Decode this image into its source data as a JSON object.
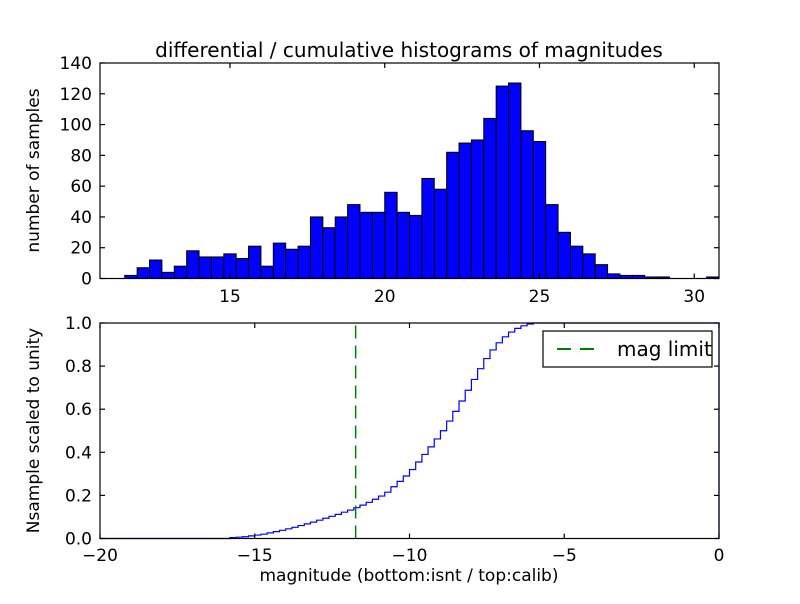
{
  "figure": {
    "background": "#ffffff"
  },
  "title": "differential / cumulative histograms of magnitudes",
  "xlabel": "magnitude (bottom:isnt / top:calib)",
  "chart_data": [
    {
      "type": "bar",
      "title": "differential / cumulative histograms of magnitudes",
      "ylabel": "number of samples",
      "xlim": [
        10.8,
        30.8
      ],
      "ylim": [
        0,
        140
      ],
      "xticks": [
        15,
        20,
        25,
        30
      ],
      "xtick_labels": [
        "15",
        "20",
        "25",
        "30"
      ],
      "yticks": [
        0,
        20,
        40,
        60,
        80,
        100,
        120,
        140
      ],
      "ytick_labels": [
        "0",
        "20",
        "40",
        "60",
        "80",
        "100",
        "120",
        "140"
      ],
      "grid": false,
      "bin_start": 11.6,
      "bin_width": 0.4,
      "values": [
        2,
        7,
        12,
        4,
        8,
        18,
        14,
        14,
        16,
        13,
        21,
        8,
        23,
        19,
        21,
        40,
        33,
        40,
        48,
        43,
        43,
        56,
        43,
        41,
        65,
        58,
        82,
        88,
        90,
        104,
        125,
        127,
        96,
        89,
        48,
        30,
        21,
        16,
        9,
        3,
        2,
        2,
        1,
        1,
        0,
        0,
        0,
        1
      ],
      "bar_color": "#0000ff",
      "bar_edge_color": "#000000"
    },
    {
      "type": "line",
      "ylabel": "Nsample scaled to unity",
      "xlabel": "magnitude (bottom:isnt / top:calib)",
      "xlim": [
        -20,
        0
      ],
      "ylim": [
        0.0,
        1.0
      ],
      "xticks": [
        -20,
        -15,
        -10,
        -5,
        0
      ],
      "xtick_labels": [
        "−20",
        "−15",
        "−10",
        "−5",
        "0"
      ],
      "yticks": [
        0.0,
        0.2,
        0.4,
        0.6,
        0.8,
        1.0
      ],
      "ytick_labels": [
        "0.0",
        "0.2",
        "0.4",
        "0.6",
        "0.8",
        "1.0"
      ],
      "grid": false,
      "line_color": "#0000ff",
      "step_start_x": -20,
      "steps": [
        [
          -15.8,
          0.004
        ],
        [
          -15.6,
          0.006
        ],
        [
          -15.4,
          0.008
        ],
        [
          -15.2,
          0.012
        ],
        [
          -15.0,
          0.016
        ],
        [
          -14.8,
          0.02
        ],
        [
          -14.6,
          0.026
        ],
        [
          -14.4,
          0.032
        ],
        [
          -14.2,
          0.038
        ],
        [
          -14.0,
          0.045
        ],
        [
          -13.8,
          0.052
        ],
        [
          -13.6,
          0.06
        ],
        [
          -13.4,
          0.068
        ],
        [
          -13.2,
          0.076
        ],
        [
          -13.0,
          0.085
        ],
        [
          -12.8,
          0.094
        ],
        [
          -12.6,
          0.103
        ],
        [
          -12.4,
          0.112
        ],
        [
          -12.2,
          0.122
        ],
        [
          -12.0,
          0.132
        ],
        [
          -11.8,
          0.143
        ],
        [
          -11.6,
          0.155
        ],
        [
          -11.4,
          0.168
        ],
        [
          -11.2,
          0.182
        ],
        [
          -11.0,
          0.197
        ],
        [
          -10.8,
          0.215
        ],
        [
          -10.6,
          0.24
        ],
        [
          -10.4,
          0.265
        ],
        [
          -10.2,
          0.29
        ],
        [
          -10.0,
          0.32
        ],
        [
          -9.8,
          0.355
        ],
        [
          -9.6,
          0.39
        ],
        [
          -9.4,
          0.425
        ],
        [
          -9.2,
          0.462
        ],
        [
          -9.0,
          0.5
        ],
        [
          -8.8,
          0.545
        ],
        [
          -8.6,
          0.59
        ],
        [
          -8.4,
          0.638
        ],
        [
          -8.2,
          0.688
        ],
        [
          -8.0,
          0.738
        ],
        [
          -7.8,
          0.788
        ],
        [
          -7.6,
          0.835
        ],
        [
          -7.4,
          0.875
        ],
        [
          -7.2,
          0.908
        ],
        [
          -7.0,
          0.936
        ],
        [
          -6.8,
          0.958
        ],
        [
          -6.6,
          0.975
        ],
        [
          -6.4,
          0.987
        ],
        [
          -6.2,
          0.995
        ],
        [
          -6.0,
          1.0
        ]
      ],
      "mag_limit_line": {
        "x": -11.74,
        "color": "#008000",
        "style": "dashed"
      },
      "legend": {
        "label": "mag limit",
        "position": "upper right",
        "sample_color": "#008000",
        "border_color": "#000000",
        "background": "#ffffff"
      }
    }
  ]
}
